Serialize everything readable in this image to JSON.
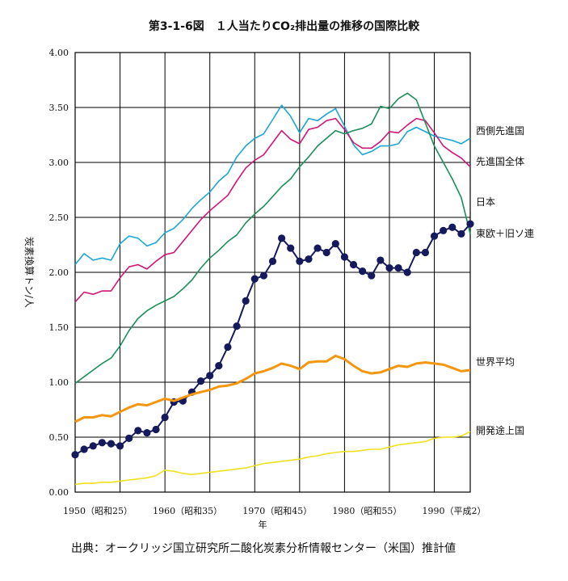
{
  "chart_data": {
    "type": "line",
    "title": "第3-1-6図　１人当たりCO₂排出量の推移の国際比較",
    "ylabel": "炭素換算トン/人",
    "xlabel": "年",
    "ylim": [
      0,
      4
    ],
    "xlim": [
      1950,
      1994
    ],
    "y_ticks": [
      "0.00",
      "0.50",
      "1.00",
      "1.50",
      "2.00",
      "2.50",
      "3.00",
      "3.50",
      "4.00"
    ],
    "x_ticks": [
      "1950（昭和25）",
      "1960（昭和35）",
      "1970（昭和45）",
      "1980（昭和55）",
      "1990（平成2）"
    ],
    "grid": true,
    "series": [
      {
        "name": "西側先進国",
        "color": "#1ba7d6",
        "markers": false,
        "x": [
          1950,
          1951,
          1952,
          1953,
          1954,
          1955,
          1956,
          1957,
          1958,
          1959,
          1960,
          1961,
          1962,
          1963,
          1964,
          1965,
          1966,
          1967,
          1968,
          1969,
          1970,
          1971,
          1972,
          1973,
          1974,
          1975,
          1976,
          1977,
          1978,
          1979,
          1980,
          1981,
          1982,
          1983,
          1984,
          1985,
          1986,
          1987,
          1988,
          1989,
          1990,
          1991,
          1992,
          1993,
          1994
        ],
        "y": [
          2.07,
          2.17,
          2.11,
          2.13,
          2.11,
          2.26,
          2.33,
          2.31,
          2.24,
          2.27,
          2.36,
          2.4,
          2.48,
          2.58,
          2.66,
          2.73,
          2.83,
          2.9,
          3.05,
          3.15,
          3.22,
          3.26,
          3.39,
          3.52,
          3.42,
          3.27,
          3.4,
          3.38,
          3.44,
          3.49,
          3.33,
          3.16,
          3.07,
          3.1,
          3.15,
          3.15,
          3.17,
          3.28,
          3.32,
          3.28,
          3.24,
          3.22,
          3.2,
          3.17,
          3.22
        ]
      },
      {
        "name": "先進国全体",
        "color": "#cf1578",
        "markers": false,
        "x": [
          1950,
          1951,
          1952,
          1953,
          1954,
          1955,
          1956,
          1957,
          1958,
          1959,
          1960,
          1961,
          1962,
          1963,
          1964,
          1965,
          1966,
          1967,
          1968,
          1969,
          1970,
          1971,
          1972,
          1973,
          1974,
          1975,
          1976,
          1977,
          1978,
          1979,
          1980,
          1981,
          1982,
          1983,
          1984,
          1985,
          1986,
          1987,
          1988,
          1989,
          1990,
          1991,
          1992,
          1993,
          1994
        ],
        "y": [
          1.73,
          1.82,
          1.8,
          1.83,
          1.83,
          1.95,
          2.05,
          2.07,
          2.03,
          2.1,
          2.16,
          2.18,
          2.28,
          2.38,
          2.48,
          2.56,
          2.63,
          2.7,
          2.83,
          2.95,
          3.02,
          3.07,
          3.18,
          3.29,
          3.21,
          3.17,
          3.3,
          3.32,
          3.38,
          3.4,
          3.3,
          3.18,
          3.13,
          3.13,
          3.19,
          3.28,
          3.27,
          3.34,
          3.4,
          3.38,
          3.27,
          3.15,
          3.09,
          3.04,
          2.96
        ]
      },
      {
        "name": "日本",
        "color": "#1a8f5a",
        "markers": false,
        "x": [
          1950,
          1951,
          1952,
          1953,
          1954,
          1955,
          1956,
          1957,
          1958,
          1959,
          1960,
          1961,
          1962,
          1963,
          1964,
          1965,
          1966,
          1967,
          1968,
          1969,
          1970,
          1971,
          1972,
          1973,
          1974,
          1975,
          1976,
          1977,
          1978,
          1979,
          1980,
          1981,
          1982,
          1983,
          1984,
          1985,
          1986,
          1987,
          1988,
          1989,
          1990,
          1991,
          1992,
          1993,
          1994
        ],
        "y": [
          0.99,
          1.05,
          1.11,
          1.17,
          1.22,
          1.33,
          1.47,
          1.58,
          1.65,
          1.7,
          1.74,
          1.78,
          1.85,
          1.93,
          2.04,
          2.13,
          2.2,
          2.28,
          2.34,
          2.45,
          2.53,
          2.6,
          2.69,
          2.78,
          2.85,
          2.96,
          3.05,
          3.15,
          3.22,
          3.29,
          3.26,
          3.29,
          3.31,
          3.35,
          3.51,
          3.49,
          3.58,
          3.63,
          3.57,
          3.36,
          3.15,
          3.0,
          2.85,
          2.68,
          2.35
        ]
      },
      {
        "name": "東欧＋旧ソ連",
        "color": "#151a5c",
        "markers": true,
        "x": [
          1950,
          1951,
          1952,
          1953,
          1954,
          1955,
          1956,
          1957,
          1958,
          1959,
          1960,
          1961,
          1962,
          1963,
          1964,
          1965,
          1966,
          1967,
          1968,
          1969,
          1970,
          1971,
          1972,
          1973,
          1974,
          1975,
          1976,
          1977,
          1978,
          1979,
          1980,
          1981,
          1982,
          1983,
          1984,
          1985,
          1986,
          1987,
          1988,
          1989,
          1990,
          1991,
          1992,
          1993,
          1994
        ],
        "y": [
          0.34,
          0.39,
          0.42,
          0.45,
          0.44,
          0.42,
          0.49,
          0.56,
          0.54,
          0.57,
          0.68,
          0.82,
          0.83,
          0.91,
          1.01,
          1.06,
          1.15,
          1.32,
          1.51,
          1.74,
          1.94,
          1.97,
          2.1,
          2.31,
          2.22,
          2.1,
          2.12,
          2.22,
          2.18,
          2.26,
          2.14,
          2.07,
          2.01,
          1.97,
          2.11,
          2.04,
          2.04,
          2.0,
          2.18,
          2.18,
          2.33,
          2.38,
          2.41,
          2.35,
          2.44
        ]
      },
      {
        "name": "世界平均",
        "color": "#f5960f",
        "markers": false,
        "x": [
          1950,
          1951,
          1952,
          1953,
          1954,
          1955,
          1956,
          1957,
          1958,
          1959,
          1960,
          1961,
          1962,
          1963,
          1964,
          1965,
          1966,
          1967,
          1968,
          1969,
          1970,
          1971,
          1972,
          1973,
          1974,
          1975,
          1976,
          1977,
          1978,
          1979,
          1980,
          1981,
          1982,
          1983,
          1984,
          1985,
          1986,
          1987,
          1988,
          1989,
          1990,
          1991,
          1992,
          1993,
          1994
        ],
        "y": [
          0.64,
          0.68,
          0.68,
          0.7,
          0.69,
          0.73,
          0.77,
          0.8,
          0.79,
          0.82,
          0.85,
          0.83,
          0.86,
          0.89,
          0.91,
          0.93,
          0.96,
          0.97,
          0.99,
          1.03,
          1.08,
          1.1,
          1.13,
          1.17,
          1.15,
          1.12,
          1.18,
          1.19,
          1.19,
          1.24,
          1.21,
          1.15,
          1.1,
          1.08,
          1.09,
          1.12,
          1.15,
          1.14,
          1.17,
          1.18,
          1.17,
          1.16,
          1.13,
          1.1,
          1.11
        ]
      },
      {
        "name": "開発途上国",
        "color": "#f0e11d",
        "markers": false,
        "x": [
          1950,
          1951,
          1952,
          1953,
          1954,
          1955,
          1956,
          1957,
          1958,
          1959,
          1960,
          1961,
          1962,
          1963,
          1964,
          1965,
          1966,
          1967,
          1968,
          1969,
          1970,
          1971,
          1972,
          1973,
          1974,
          1975,
          1976,
          1977,
          1978,
          1979,
          1980,
          1981,
          1982,
          1983,
          1984,
          1985,
          1986,
          1987,
          1988,
          1989,
          1990,
          1991,
          1992,
          1993,
          1994
        ],
        "y": [
          0.07,
          0.08,
          0.08,
          0.09,
          0.09,
          0.1,
          0.11,
          0.12,
          0.13,
          0.15,
          0.2,
          0.19,
          0.17,
          0.16,
          0.17,
          0.18,
          0.19,
          0.2,
          0.21,
          0.22,
          0.24,
          0.26,
          0.27,
          0.28,
          0.29,
          0.3,
          0.32,
          0.33,
          0.35,
          0.36,
          0.37,
          0.37,
          0.38,
          0.39,
          0.39,
          0.41,
          0.43,
          0.44,
          0.45,
          0.46,
          0.49,
          0.5,
          0.5,
          0.51,
          0.55
        ]
      }
    ]
  },
  "source_text": "出典：オークリッジ国立研究所二酸化炭素分析情報センター（米国）推計値"
}
